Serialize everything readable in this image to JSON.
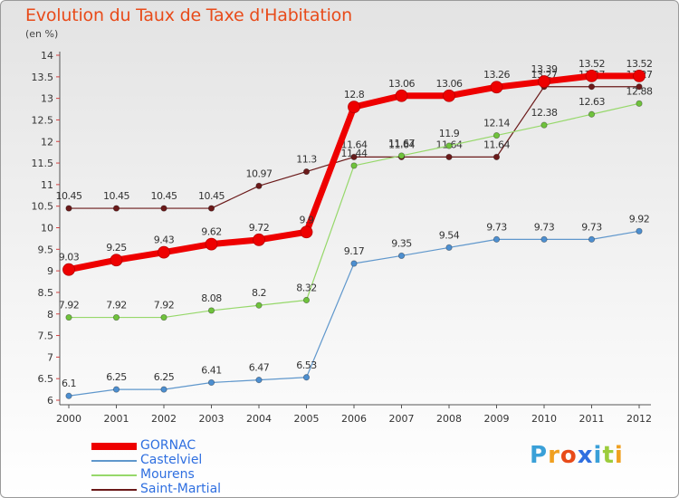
{
  "title": "Evolution du Taux de Taxe d'Habitation",
  "unit_label": "(en %)",
  "brand": {
    "letters": [
      {
        "ch": "P",
        "color": "#3aa0d8"
      },
      {
        "ch": "r",
        "color": "#f0a020"
      },
      {
        "ch": "o",
        "color": "#e84b1a"
      },
      {
        "ch": "x",
        "color": "#2f6fe0"
      },
      {
        "ch": "i",
        "color": "#3aa0d8"
      },
      {
        "ch": "t",
        "color": "#9ccc3c"
      },
      {
        "ch": "i",
        "color": "#f0a020"
      }
    ]
  },
  "chart_data": {
    "type": "line",
    "x": [
      "2000",
      "2001",
      "2002",
      "2003",
      "2004",
      "2005",
      "2006",
      "2007",
      "2008",
      "2009",
      "2010",
      "2011",
      "2012"
    ],
    "ylim": [
      6,
      14
    ],
    "yticks": [
      "6",
      "6.5",
      "7",
      "7.5",
      "8",
      "8.5",
      "9",
      "9.5",
      "10",
      "10.5",
      "11",
      "11.5",
      "12",
      "12.5",
      "13",
      "13.5",
      "14"
    ],
    "grid": false,
    "legend_position": "bottom-left",
    "series": [
      {
        "name": "Saint-Martial",
        "color": "#6b1a1a",
        "dot": "#6b1a1a",
        "width": 1.2,
        "values": [
          10.45,
          10.45,
          10.45,
          10.45,
          10.97,
          11.3,
          11.64,
          11.64,
          11.64,
          11.64,
          13.27,
          13.27,
          13.27
        ],
        "labels": [
          "10.45",
          "10.45",
          "10.45",
          "10.45",
          "10.97",
          "11.3",
          "11.64",
          "11.64",
          "11.64",
          "11.64",
          "13.27",
          "13.27",
          "13.27"
        ]
      },
      {
        "name": "Mourens",
        "color": "#96d86a",
        "dot": "#6fc23c",
        "width": 1.2,
        "values": [
          7.92,
          7.92,
          7.92,
          8.08,
          8.2,
          8.32,
          11.44,
          11.67,
          11.9,
          12.14,
          12.38,
          12.63,
          12.88
        ],
        "labels": [
          "7.92",
          "7.92",
          "7.92",
          "8.08",
          "8.2",
          "8.32",
          "11.44",
          "11.67",
          "11.9",
          "12.14",
          "12.38",
          "12.63",
          "12.88"
        ]
      },
      {
        "name": "Castelviel",
        "color": "#5f97cc",
        "dot": "#4d8fd0",
        "width": 1.2,
        "values": [
          6.1,
          6.25,
          6.25,
          6.41,
          6.47,
          6.53,
          9.17,
          9.35,
          9.54,
          9.73,
          9.73,
          9.73,
          9.92
        ],
        "labels": [
          "6.1",
          "6.25",
          "6.25",
          "6.41",
          "6.47",
          "6.53",
          "9.17",
          "9.35",
          "9.54",
          "9.73",
          "9.73",
          "9.73",
          "9.92"
        ]
      },
      {
        "name": "GORNAC",
        "color": "#ee0000",
        "dot": "#ee0000",
        "width": 7,
        "values": [
          9.03,
          9.25,
          9.43,
          9.62,
          9.72,
          9.9,
          12.8,
          13.06,
          13.06,
          13.26,
          13.39,
          13.52,
          13.52
        ],
        "labels": [
          "9.03",
          "9.25",
          "9.43",
          "9.62",
          "9.72",
          "9.9",
          "12.8",
          "13.06",
          "13.06",
          "13.26",
          "13.39",
          "13.52",
          "13.52"
        ]
      }
    ],
    "legend": [
      {
        "name": "GORNAC",
        "color": "#ee0000",
        "thickness": 8
      },
      {
        "name": "Castelviel",
        "color": "#5f97cc",
        "thickness": 2
      },
      {
        "name": "Mourens",
        "color": "#96d86a",
        "thickness": 2
      },
      {
        "name": "Saint-Martial",
        "color": "#6b1a1a",
        "thickness": 2
      }
    ]
  }
}
